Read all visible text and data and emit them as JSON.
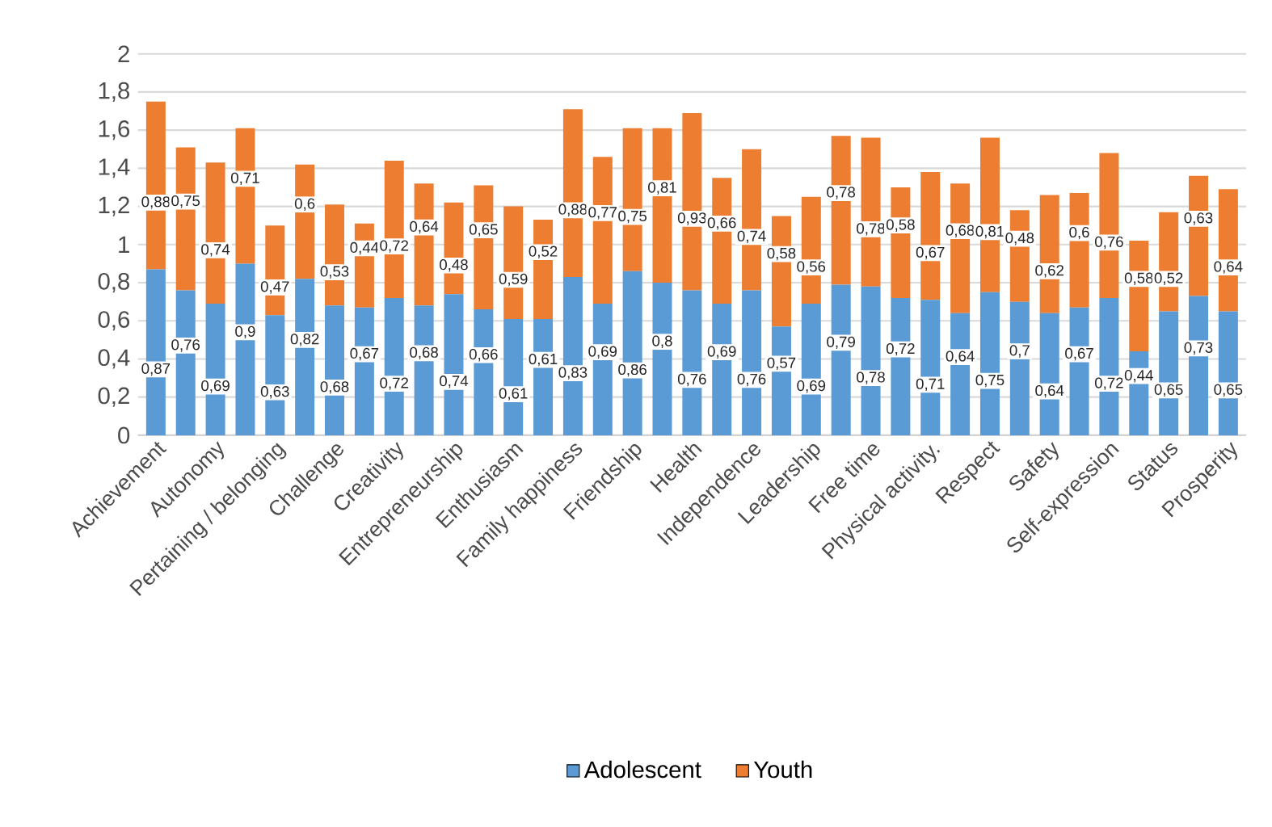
{
  "chart_data": {
    "type": "bar",
    "stacked": true,
    "categories": [
      "Achievement",
      null,
      "Autonomy",
      null,
      "Pertaining / belonging",
      null,
      "Challenge",
      null,
      "Creativity",
      null,
      "Entrepreneurship",
      null,
      "Enthusiasm",
      null,
      "Family happiness",
      null,
      "Friendship",
      null,
      "Health",
      null,
      "Independence",
      null,
      "Leadership",
      null,
      "Free time",
      null,
      "Physical activity.",
      null,
      "Respect",
      null,
      "Safety",
      null,
      "Self-expression",
      null,
      "Status",
      null,
      "Prosperity"
    ],
    "series": [
      {
        "name": "Adolescent",
        "color": "#5b9bd5",
        "values": [
          0.87,
          0.76,
          0.69,
          0.9,
          0.63,
          0.82,
          0.68,
          0.67,
          0.72,
          0.68,
          0.74,
          0.66,
          0.61,
          0.61,
          0.83,
          0.69,
          0.86,
          0.8,
          0.76,
          0.69,
          0.76,
          0.57,
          0.69,
          0.79,
          0.78,
          0.72,
          0.71,
          0.64,
          0.75,
          0.7,
          0.64,
          0.67,
          0.72,
          0.44,
          0.65,
          0.73,
          0.65
        ],
        "value_labels": [
          "0,87",
          "0,76",
          "0,69",
          "0,9",
          "0,63",
          "0,82",
          "0,68",
          "0,67",
          "0,72",
          "0,68",
          "0,74",
          "0,66",
          "0,61",
          "0,61",
          "0,83",
          "0,69",
          "0,86",
          "0,8",
          "0,76",
          "0,69",
          "0,76",
          "0,57",
          "0,69",
          "0,79",
          "0,78",
          "0,72",
          "0,71",
          "0,64",
          "0,75",
          "0,7",
          "0,64",
          "0,67",
          "0,72",
          "0,44",
          "0,65",
          "0,73",
          "0,65"
        ]
      },
      {
        "name": "Youth",
        "color": "#ed7d31",
        "values": [
          0.88,
          0.75,
          0.74,
          0.71,
          0.47,
          0.6,
          0.53,
          0.44,
          0.72,
          0.64,
          0.48,
          0.65,
          0.59,
          0.52,
          0.88,
          0.77,
          0.75,
          0.81,
          0.93,
          0.66,
          0.74,
          0.58,
          0.56,
          0.78,
          0.78,
          0.58,
          0.67,
          0.68,
          0.81,
          0.48,
          0.62,
          0.6,
          0.76,
          0.58,
          0.52,
          0.63,
          0.64
        ],
        "value_labels": [
          "0,88",
          "0,75",
          "0,74",
          "0,71",
          "0,47",
          "0,6",
          "0,53",
          "0,44",
          "0,72",
          "0,64",
          "0,48",
          "0,65",
          "0,59",
          "0,52",
          "0,88",
          "0,77",
          "0,75",
          "0,81",
          "0,93",
          "0,66",
          "0,74",
          "0,58",
          "0,56",
          "0,78",
          "0,78",
          "0,58",
          "0,67",
          "0,68",
          "0,81",
          "0,48",
          "0,62",
          "0,6",
          "0,76",
          "0,58",
          "0,52",
          "0,63",
          "0,64"
        ]
      }
    ],
    "ylim": [
      0,
      2
    ],
    "yticks": [
      0,
      {
        "value": 0.2,
        "label": "0,2"
      },
      {
        "value": 0.4,
        "label": "0,4"
      },
      {
        "value": 0.6,
        "label": "0,6"
      },
      {
        "value": 0.8,
        "label": "0,8"
      },
      1,
      {
        "value": 1.2,
        "label": "1,2"
      },
      {
        "value": 1.4,
        "label": "1,4"
      },
      {
        "value": 1.6,
        "label": "1,6"
      },
      {
        "value": 1.8,
        "label": "1,8"
      },
      2
    ],
    "grid": "y",
    "legend": "bottom"
  }
}
